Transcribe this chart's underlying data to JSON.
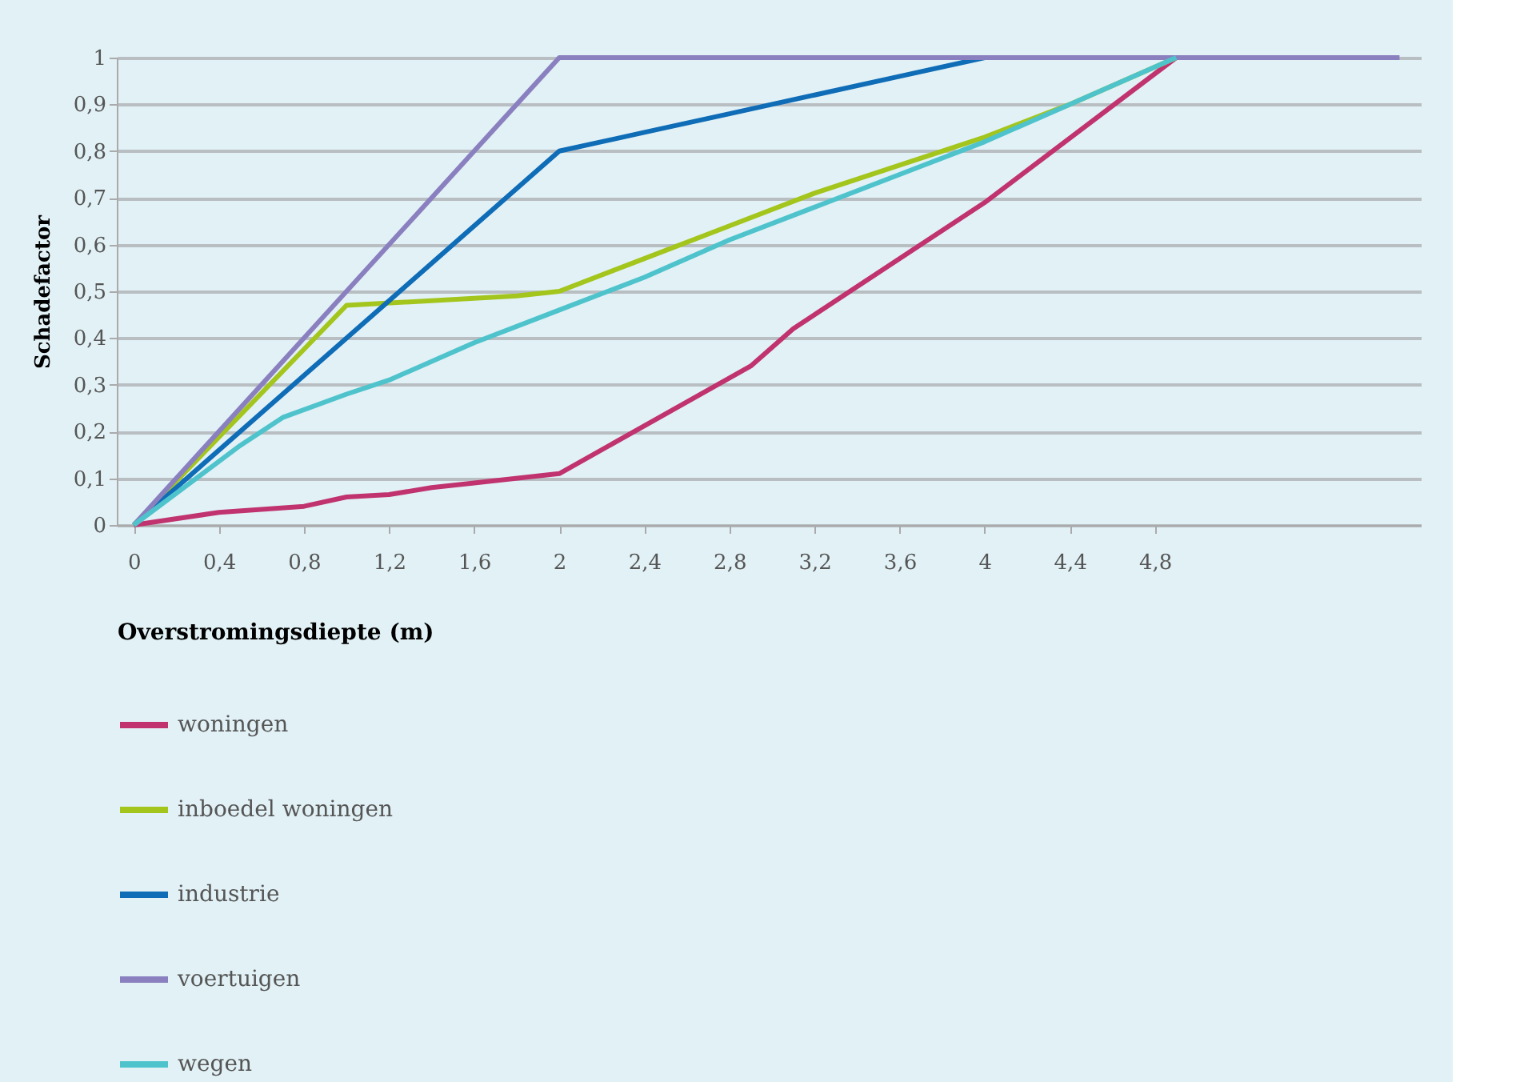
{
  "chart_data": {
    "type": "line",
    "xlabel": "Overstromingsdiepte (m)",
    "ylabel": "Schadefactor",
    "xlim": [
      -0.08,
      6.05
    ],
    "ylim": [
      0,
      1
    ],
    "xticks": [
      0,
      {
        "value": 0.4,
        "label": "0,4"
      },
      {
        "value": 0.8,
        "label": "0,8"
      },
      {
        "value": 1.2,
        "label": "1,2"
      },
      {
        "value": 1.6,
        "label": "1,6"
      },
      2,
      {
        "value": 2.4,
        "label": "2,4"
      },
      {
        "value": 2.8,
        "label": "2,8"
      },
      {
        "value": 3.2,
        "label": "3,2"
      },
      {
        "value": 3.6,
        "label": "3,6"
      },
      4,
      {
        "value": 4.4,
        "label": "4,4"
      },
      {
        "value": 4.8,
        "label": "4,8"
      }
    ],
    "yticks": [
      0,
      {
        "value": 0.1,
        "label": "0,1"
      },
      {
        "value": 0.2,
        "label": "0,2"
      },
      {
        "value": 0.3,
        "label": "0,3"
      },
      {
        "value": 0.4,
        "label": "0,4"
      },
      {
        "value": 0.5,
        "label": "0,5"
      },
      {
        "value": 0.6,
        "label": "0,6"
      },
      {
        "value": 0.7,
        "label": "0,7"
      },
      {
        "value": 0.8,
        "label": "0,8"
      },
      {
        "value": 0.9,
        "label": "0,9"
      },
      1
    ],
    "grid": "y",
    "legend": "bottom",
    "marker": "none",
    "line_style": "solid",
    "series": [
      {
        "name": "woningen",
        "color": "#c0336e",
        "x": [
          0,
          0.4,
          0.8,
          1.0,
          1.2,
          1.4,
          1.6,
          2.0,
          2.9,
          3.1,
          4.0,
          4.9
        ],
        "values": [
          0,
          0.027,
          0.04,
          0.06,
          0.065,
          0.08,
          0.09,
          0.11,
          0.34,
          0.42,
          0.69,
          1.0
        ]
      },
      {
        "name": "inboedel woningen",
        "color": "#a3c51c",
        "x": [
          0,
          1.0,
          1.8,
          2.0,
          2.4,
          2.8,
          3.2,
          3.6,
          4.0,
          4.4,
          4.9
        ],
        "values": [
          0,
          0.47,
          0.49,
          0.5,
          0.57,
          0.64,
          0.71,
          0.77,
          0.83,
          0.9,
          1.0
        ]
      },
      {
        "name": "industrie",
        "color": "#0f6cb6",
        "x": [
          0,
          2.0,
          2.4,
          2.8,
          3.2,
          3.6,
          4.0
        ],
        "values": [
          0,
          0.8,
          0.84,
          0.88,
          0.92,
          0.96,
          1.0
        ]
      },
      {
        "name": "voertuigen",
        "color": "#8a80bf",
        "x": [
          0,
          1.6,
          2.0,
          5.95
        ],
        "values": [
          0,
          0.8,
          1.0,
          1.0
        ]
      },
      {
        "name": "wegen",
        "color": "#4fc3cc",
        "x": [
          0,
          0.5,
          0.7,
          1.0,
          1.2,
          1.6,
          2.0,
          2.4,
          2.8,
          3.2,
          3.6,
          4.0,
          4.4,
          4.9
        ],
        "values": [
          0,
          0.17,
          0.23,
          0.28,
          0.31,
          0.39,
          0.46,
          0.53,
          0.61,
          0.68,
          0.75,
          0.82,
          0.9,
          1.0
        ]
      }
    ]
  }
}
